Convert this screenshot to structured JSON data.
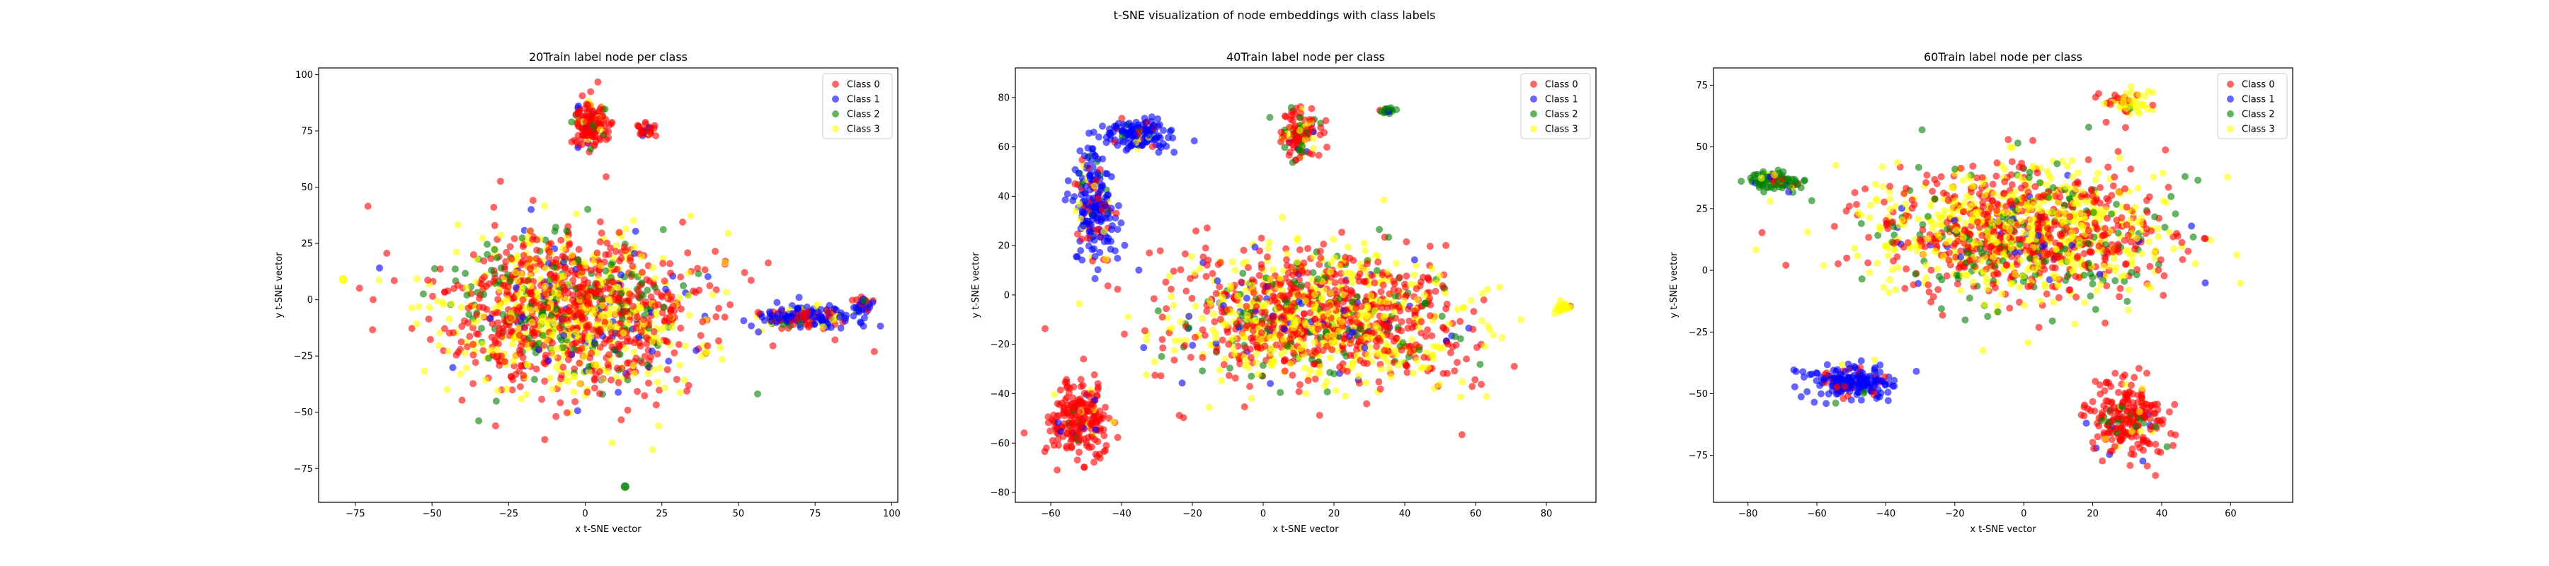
{
  "figure": {
    "suptitle": "t-SNE visualization of node embeddings with class labels"
  },
  "colors": {
    "Class 0": "#ff0000",
    "Class 1": "#0000ff",
    "Class 2": "#008000",
    "Class 3": "#ffff00"
  },
  "chart_data": [
    {
      "type": "scatter",
      "title": "20Train label node per class",
      "xlabel": "x t-SNE vector",
      "ylabel": "y t-SNE vector",
      "xlim": [
        -87,
        102
      ],
      "ylim": [
        -90,
        103
      ],
      "xticks": [
        -75,
        -50,
        -25,
        0,
        25,
        50,
        75,
        100
      ],
      "yticks": [
        -75,
        -50,
        -25,
        0,
        25,
        50,
        75,
        100
      ],
      "legend": [
        "Class 0",
        "Class 1",
        "Class 2",
        "Class 3"
      ],
      "legend_position": "top-right",
      "grid": false,
      "clusters": [
        {
          "name": "main body",
          "class_mix": [
            0.48,
            0.05,
            0.12,
            0.35
          ],
          "center": [
            -5,
            -5
          ],
          "spread": [
            38,
            32
          ],
          "n": 1400
        },
        {
          "name": "top lobe",
          "class_mix": [
            0.85,
            0.05,
            0.05,
            0.05
          ],
          "center": [
            2,
            78
          ],
          "spread": [
            5,
            9
          ],
          "n": 160
        },
        {
          "name": "top-right spot",
          "class_mix": [
            0.85,
            0.05,
            0.05,
            0.05
          ],
          "center": [
            20,
            75
          ],
          "spread": [
            3,
            3
          ],
          "n": 30
        },
        {
          "name": "right tail",
          "class_mix": [
            0.3,
            0.6,
            0.05,
            0.05
          ],
          "center": [
            72,
            -8
          ],
          "spread": [
            14,
            5
          ],
          "n": 180
        },
        {
          "name": "right tail tip",
          "class_mix": [
            0.2,
            0.7,
            0.05,
            0.05
          ],
          "center": [
            90,
            -3
          ],
          "spread": [
            3,
            5
          ],
          "n": 30
        }
      ],
      "outliers": [
        {
          "x": -79,
          "y": 9,
          "class": "Class 3"
        },
        {
          "x": 13,
          "y": -83,
          "class": "Class 2"
        }
      ]
    },
    {
      "type": "scatter",
      "title": "40Train label node per class",
      "xlabel": "x t-SNE vector",
      "ylabel": "y t-SNE vector",
      "xlim": [
        -70,
        94
      ],
      "ylim": [
        -84,
        92
      ],
      "xticks": [
        -60,
        -40,
        -20,
        0,
        20,
        40,
        60,
        80
      ],
      "yticks": [
        -80,
        -60,
        -40,
        -20,
        0,
        20,
        40,
        60,
        80
      ],
      "legend": [
        "Class 0",
        "Class 1",
        "Class 2",
        "Class 3"
      ],
      "legend_position": "top-right",
      "grid": false,
      "clusters": [
        {
          "name": "main body",
          "class_mix": [
            0.48,
            0.05,
            0.1,
            0.37
          ],
          "center": [
            15,
            -10
          ],
          "spread": [
            38,
            24
          ],
          "n": 1300
        },
        {
          "name": "left bottom",
          "class_mix": [
            0.88,
            0.04,
            0.04,
            0.04
          ],
          "center": [
            -52,
            -50
          ],
          "spread": [
            8,
            13
          ],
          "n": 220
        },
        {
          "name": "left column",
          "class_mix": [
            0.2,
            0.7,
            0.05,
            0.05
          ],
          "center": [
            -48,
            35
          ],
          "spread": [
            5,
            22
          ],
          "n": 220
        },
        {
          "name": "top-left arm",
          "class_mix": [
            0.1,
            0.85,
            0.03,
            0.02
          ],
          "center": [
            -35,
            65
          ],
          "spread": [
            8,
            6
          ],
          "n": 140
        },
        {
          "name": "top lobe",
          "class_mix": [
            0.6,
            0.05,
            0.2,
            0.15
          ],
          "center": [
            10,
            65
          ],
          "spread": [
            5,
            9
          ],
          "n": 120
        },
        {
          "name": "right small",
          "class_mix": [
            0.05,
            0.05,
            0.9,
            0.0
          ],
          "center": [
            35,
            75
          ],
          "spread": [
            2,
            1
          ],
          "n": 20
        },
        {
          "name": "right tip",
          "class_mix": [
            0.1,
            0.0,
            0.0,
            0.9
          ],
          "center": [
            85,
            -5
          ],
          "spread": [
            2,
            2
          ],
          "n": 25
        }
      ],
      "outliers": []
    },
    {
      "type": "scatter",
      "title": "60Train label node per class",
      "xlabel": "x t-SNE vector",
      "ylabel": "y t-SNE vector",
      "xlim": [
        -90,
        78
      ],
      "ylim": [
        -94,
        82
      ],
      "xticks": [
        -80,
        -60,
        -40,
        -20,
        0,
        20,
        40,
        60
      ],
      "yticks": [
        -75,
        -50,
        -25,
        0,
        25,
        50,
        75
      ],
      "legend": [
        "Class 0",
        "Class 1",
        "Class 2",
        "Class 3"
      ],
      "legend_position": "top-right",
      "grid": false,
      "clusters": [
        {
          "name": "main body",
          "class_mix": [
            0.45,
            0.03,
            0.12,
            0.4
          ],
          "center": [
            0,
            15
          ],
          "spread": [
            40,
            24
          ],
          "n": 1300
        },
        {
          "name": "top-left green",
          "class_mix": [
            0.1,
            0.05,
            0.8,
            0.05
          ],
          "center": [
            -72,
            36
          ],
          "spread": [
            7,
            4
          ],
          "n": 90
        },
        {
          "name": "bottom-left blue",
          "class_mix": [
            0.15,
            0.8,
            0.03,
            0.02
          ],
          "center": [
            -50,
            -45
          ],
          "spread": [
            12,
            6
          ],
          "n": 200
        },
        {
          "name": "bottom-right red",
          "class_mix": [
            0.85,
            0.05,
            0.05,
            0.05
          ],
          "center": [
            30,
            -60
          ],
          "spread": [
            10,
            14
          ],
          "n": 240
        },
        {
          "name": "top-right patch",
          "class_mix": [
            0.3,
            0.0,
            0.05,
            0.65
          ],
          "center": [
            30,
            68
          ],
          "spread": [
            6,
            5
          ],
          "n": 60
        }
      ],
      "outliers": []
    }
  ]
}
